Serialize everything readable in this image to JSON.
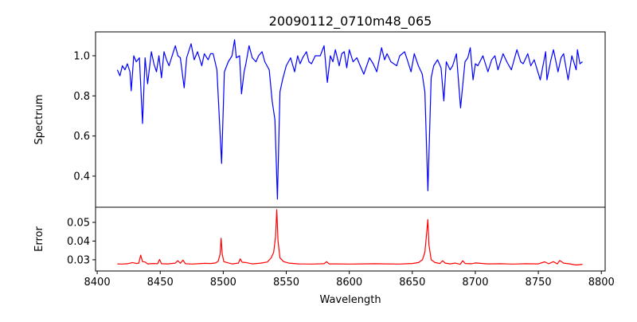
{
  "chart_data": [
    {
      "type": "line",
      "title": "20090112_0710m48_065",
      "xlabel": "",
      "ylabel": "Spectrum",
      "xlim": [
        8398.7,
        8803
      ],
      "ylim": [
        0.245,
        1.119
      ],
      "yticks": [
        0.4,
        0.6,
        0.8,
        1.0
      ],
      "ytick_labels": [
        "0.4",
        "0.6",
        "0.8",
        "1.0"
      ],
      "grid": false,
      "color": "#0000ff",
      "series": [
        {
          "name": "Spectrum",
          "x": [
            8416,
            8418,
            8420,
            8422,
            8424,
            8426,
            8427,
            8429,
            8431,
            8433.5,
            8436,
            8438,
            8440,
            8443,
            8445,
            8447,
            8449,
            8451,
            8453,
            8455,
            8457,
            8460,
            8462,
            8464,
            8466,
            8469,
            8471,
            8474.5,
            8477,
            8479.6,
            8483,
            8485,
            8488,
            8490,
            8492,
            8495,
            8498.7,
            8500.9,
            8504,
            8507,
            8509,
            8510.4,
            8513,
            8514.5,
            8516.6,
            8518,
            8520.5,
            8523,
            8526,
            8528,
            8530.8,
            8533,
            8536.5,
            8538.8,
            8541,
            8543,
            8545,
            8547,
            8550,
            8553.5,
            8556.6,
            8559,
            8561,
            8563,
            8566,
            8568,
            8570,
            8573,
            8577,
            8580,
            8582.6,
            8585,
            8587,
            8589,
            8592,
            8594,
            8596,
            8598,
            8600,
            8603,
            8606,
            8608,
            8611.5,
            8616,
            8619,
            8621.8,
            8625.6,
            8628,
            8630,
            8633,
            8637.6,
            8640,
            8643.9,
            8646,
            8649,
            8651.6,
            8654.8,
            8657.8,
            8660,
            8662.4,
            8665,
            8667,
            8670,
            8672.8,
            8675,
            8677,
            8680,
            8682,
            8685,
            8688.3,
            8691.8,
            8694,
            8696,
            8698.2,
            8700,
            8702,
            8706,
            8708,
            8710,
            8713,
            8715.6,
            8718,
            8722,
            8725,
            8728.6,
            8733,
            8736,
            8738,
            8741.6,
            8744,
            8746.7,
            8751.5,
            8755.8,
            8756.8,
            8760,
            8762,
            8765.6,
            8768,
            8770,
            8773.6,
            8776.6,
            8780,
            8781,
            8783,
            8785
          ],
          "y": [
            0.93,
            0.9,
            0.95,
            0.93,
            0.96,
            0.92,
            0.825,
            1.0,
            0.97,
            0.99,
            0.662,
            0.99,
            0.86,
            1.02,
            0.96,
            0.92,
            1.0,
            0.89,
            1.02,
            0.98,
            0.95,
            1.01,
            1.05,
            1.0,
            0.99,
            0.84,
            0.99,
            1.06,
            0.98,
            1.02,
            0.95,
            1.01,
            0.98,
            1.01,
            1.01,
            0.93,
            0.463,
            0.92,
            0.97,
            1.0,
            1.08,
            0.99,
            1.0,
            0.81,
            0.92,
            0.96,
            1.05,
            0.99,
            0.97,
            1.0,
            1.02,
            0.97,
            0.93,
            0.775,
            0.68,
            0.285,
            0.82,
            0.88,
            0.95,
            0.99,
            0.92,
            1.0,
            0.96,
            0.99,
            1.02,
            0.97,
            0.96,
            1.0,
            1.0,
            1.05,
            0.867,
            1.0,
            0.97,
            1.03,
            0.95,
            1.01,
            1.02,
            0.94,
            1.03,
            0.97,
            0.99,
            0.96,
            0.908,
            0.99,
            0.96,
            0.92,
            1.04,
            0.98,
            1.01,
            0.97,
            0.95,
            1.0,
            1.02,
            0.98,
            0.92,
            1.01,
            0.95,
            0.91,
            0.82,
            0.327,
            0.89,
            0.95,
            0.98,
            0.94,
            0.775,
            0.97,
            0.93,
            0.95,
            1.01,
            0.74,
            0.97,
            0.99,
            1.04,
            0.88,
            0.96,
            0.95,
            1.0,
            0.96,
            0.92,
            0.98,
            1.0,
            0.93,
            1.01,
            0.97,
            0.93,
            1.03,
            0.97,
            0.96,
            1.01,
            0.95,
            0.98,
            0.88,
            1.02,
            0.88,
            0.98,
            1.03,
            0.92,
            0.99,
            1.01,
            0.88,
            1.0,
            0.93,
            1.03,
            0.96,
            0.97
          ]
        }
      ]
    },
    {
      "type": "line",
      "xlabel": "Wavelength",
      "ylabel": "Error",
      "xlim": [
        8398.7,
        8803
      ],
      "ylim": [
        0.024,
        0.0581
      ],
      "xticks": [
        8400,
        8450,
        8500,
        8550,
        8600,
        8650,
        8700,
        8750,
        8800
      ],
      "xtick_labels": [
        "8400",
        "8450",
        "8500",
        "8550",
        "8600",
        "8650",
        "8700",
        "8750",
        "8800"
      ],
      "yticks": [
        0.03,
        0.04,
        0.05
      ],
      "ytick_labels": [
        "0.03",
        "0.04",
        "0.05"
      ],
      "grid": false,
      "color": "#ff0000",
      "series": [
        {
          "name": "Error",
          "x": [
            8416,
            8420,
            8424,
            8428,
            8431,
            8433,
            8434.5,
            8436,
            8438,
            8440,
            8444,
            8448,
            8449.5,
            8451,
            8456,
            8462,
            8464,
            8466,
            8468,
            8470,
            8475,
            8480,
            8485,
            8490,
            8494,
            8496,
            8497.5,
            8498.3,
            8499.2,
            8500.5,
            8503,
            8507,
            8512,
            8513.5,
            8515,
            8518,
            8523,
            8530,
            8535,
            8538,
            8540,
            8541.5,
            8542.5,
            8543.5,
            8545,
            8548,
            8552,
            8560,
            8570,
            8580,
            8582,
            8584,
            8590,
            8600,
            8610,
            8620,
            8630,
            8640,
            8650,
            8655,
            8658,
            8660,
            8661.5,
            8662.3,
            8663.2,
            8665,
            8668,
            8672,
            8674,
            8676,
            8680,
            8684,
            8688,
            8690,
            8692,
            8697,
            8700,
            8710,
            8720,
            8730,
            8740,
            8750,
            8755,
            8758,
            8762,
            8765,
            8767,
            8770,
            8775,
            8780,
            8785
          ],
          "y": [
            0.0278,
            0.0277,
            0.0279,
            0.0285,
            0.028,
            0.0282,
            0.0325,
            0.029,
            0.0288,
            0.0278,
            0.028,
            0.0279,
            0.0302,
            0.0279,
            0.0278,
            0.0282,
            0.0295,
            0.0281,
            0.0298,
            0.0279,
            0.0277,
            0.0279,
            0.0281,
            0.028,
            0.0283,
            0.0292,
            0.033,
            0.0415,
            0.033,
            0.029,
            0.0285,
            0.0278,
            0.0282,
            0.0305,
            0.0287,
            0.0285,
            0.0278,
            0.0282,
            0.0288,
            0.031,
            0.034,
            0.042,
            0.0568,
            0.04,
            0.031,
            0.029,
            0.0282,
            0.0278,
            0.0277,
            0.0279,
            0.029,
            0.0278,
            0.0278,
            0.0277,
            0.0278,
            0.0279,
            0.0278,
            0.0277,
            0.028,
            0.0285,
            0.03,
            0.034,
            0.045,
            0.0515,
            0.038,
            0.03,
            0.0285,
            0.028,
            0.0295,
            0.0282,
            0.0278,
            0.0282,
            0.0276,
            0.0295,
            0.028,
            0.0279,
            0.0283,
            0.0278,
            0.0279,
            0.0277,
            0.0279,
            0.0278,
            0.0289,
            0.0279,
            0.029,
            0.0278,
            0.0296,
            0.0282,
            0.0278,
            0.0272,
            0.0276
          ]
        }
      ]
    }
  ]
}
